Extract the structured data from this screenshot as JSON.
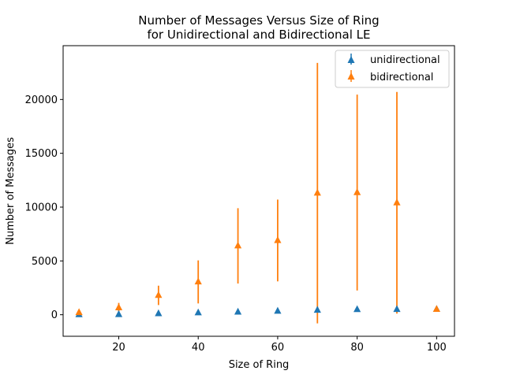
{
  "chart_data": {
    "type": "scatter",
    "title": [
      "Number of Messages Versus Size of Ring",
      "for Unidirectional and Bidirectional LE"
    ],
    "xlabel": "Size of Ring",
    "ylabel": "Number of Messages",
    "xlim": [
      6,
      104.5
    ],
    "ylim": [
      -2000,
      25000
    ],
    "xticks": [
      20,
      40,
      60,
      80,
      100
    ],
    "yticks": [
      0,
      5000,
      10000,
      15000,
      20000
    ],
    "grid": false,
    "legend_position": "top-right",
    "marker": "triangle-up",
    "x": [
      10,
      20,
      30,
      40,
      50,
      60,
      70,
      80,
      90,
      100
    ],
    "series": [
      {
        "name": "unidirectional",
        "color": "#1f77b4",
        "values": [
          10,
          20,
          100,
          180,
          250,
          330,
          420,
          480,
          490,
          500
        ],
        "error": [
          0,
          0,
          0,
          0,
          0,
          0,
          0,
          0,
          0,
          0
        ]
      },
      {
        "name": "bidirectional",
        "color": "#ff7f0e",
        "values": [
          200,
          650,
          1800,
          3050,
          6400,
          6900,
          11300,
          11350,
          10400,
          500
        ],
        "error": [
          180,
          450,
          900,
          2000,
          3500,
          3800,
          12100,
          9100,
          10300,
          0
        ]
      }
    ]
  }
}
